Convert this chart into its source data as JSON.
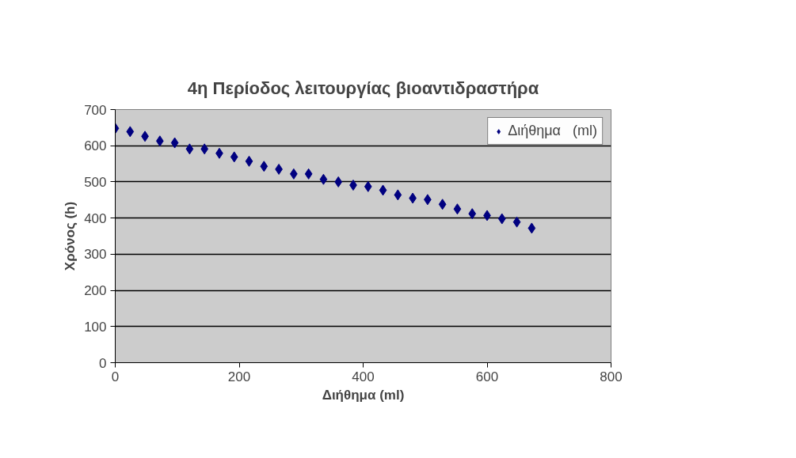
{
  "chart_data": {
    "type": "scatter",
    "title": "4η Περίοδος λειτουργίας βιοαντιδραστήρα",
    "xlabel": "Διήθημα (ml)",
    "ylabel": "Χρόνος (h)",
    "x": [
      0,
      24,
      48,
      72,
      96,
      120,
      144,
      168,
      192,
      216,
      240,
      264,
      288,
      312,
      336,
      360,
      384,
      408,
      432,
      456,
      480,
      504,
      528,
      552,
      576,
      600,
      624,
      648,
      672
    ],
    "series": [
      {
        "name": "Διήθημα   (ml)",
        "color": "#000080",
        "values": [
          648,
          639,
          626,
          613,
          608,
          591,
          591,
          579,
          569,
          557,
          543,
          535,
          522,
          522,
          507,
          500,
          491,
          487,
          477,
          464,
          455,
          451,
          438,
          425,
          412,
          407,
          398,
          389,
          372
        ]
      }
    ],
    "xlim": [
      0,
      800
    ],
    "xticks": [
      0,
      200,
      400,
      600,
      800
    ],
    "ylim": [
      0,
      700
    ],
    "yticks": [
      0,
      100,
      200,
      300,
      400,
      500,
      600,
      700
    ],
    "grid": "y",
    "legend": "top right",
    "marker": "diamond"
  }
}
